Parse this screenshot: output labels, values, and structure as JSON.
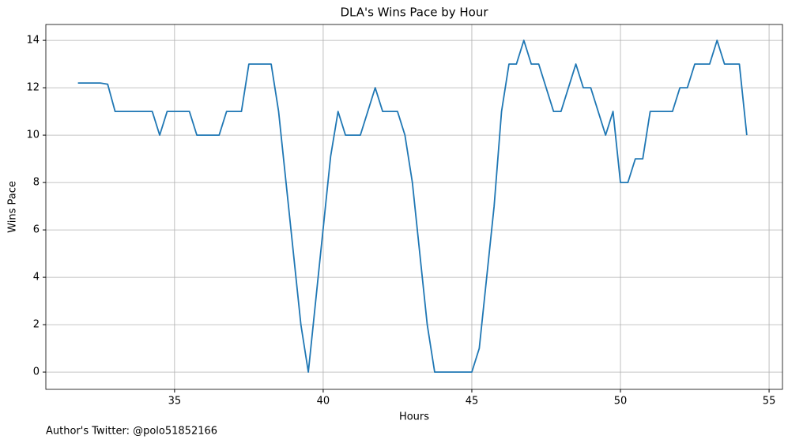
{
  "chart_data": {
    "type": "line",
    "title": "DLA's Wins Pace by Hour",
    "xlabel": "Hours",
    "ylabel": "Wins Pace",
    "footnote": "Author's Twitter: @polo51852166",
    "x": [
      31.75,
      32.5,
      32.75,
      33,
      34.25,
      34.5,
      34.75,
      35.5,
      35.75,
      36.5,
      36.75,
      37.25,
      37.5,
      38.25,
      38.5,
      39.25,
      39.5,
      40.25,
      40.5,
      40.75,
      41.25,
      41.75,
      42,
      42.5,
      42.75,
      43,
      43.5,
      43.75,
      45,
      45.25,
      45.75,
      46,
      46.25,
      46.5,
      46.75,
      47,
      47.25,
      47.75,
      48,
      48.5,
      48.75,
      49,
      49.5,
      49.75,
      50,
      50.25,
      50.5,
      50.75,
      51,
      51.75,
      52,
      52.25,
      52.5,
      53,
      53.25,
      53.5,
      54,
      54.25
    ],
    "series": [
      {
        "name": "Wins Pace",
        "color": "#1f77b4",
        "values": [
          12.2,
          12.2,
          12.15,
          11,
          11,
          10,
          11,
          11,
          10,
          10,
          11,
          11,
          13,
          13,
          11,
          2,
          0,
          9.1,
          11,
          10,
          10,
          12,
          11,
          11,
          10,
          8,
          2,
          0,
          0,
          1,
          7,
          11,
          13,
          13,
          14,
          13,
          13,
          11,
          11,
          13,
          12,
          12,
          10,
          11,
          8,
          8,
          9,
          9,
          11,
          11,
          12,
          12,
          13,
          13,
          14,
          13,
          13,
          10
        ]
      }
    ],
    "xlim": [
      30.67,
      55.45
    ],
    "ylim": [
      -0.73,
      14.67
    ],
    "xticks": [
      35,
      40,
      45,
      50,
      55
    ],
    "yticks": [
      0,
      2,
      4,
      6,
      8,
      10,
      12,
      14
    ],
    "grid": true
  }
}
